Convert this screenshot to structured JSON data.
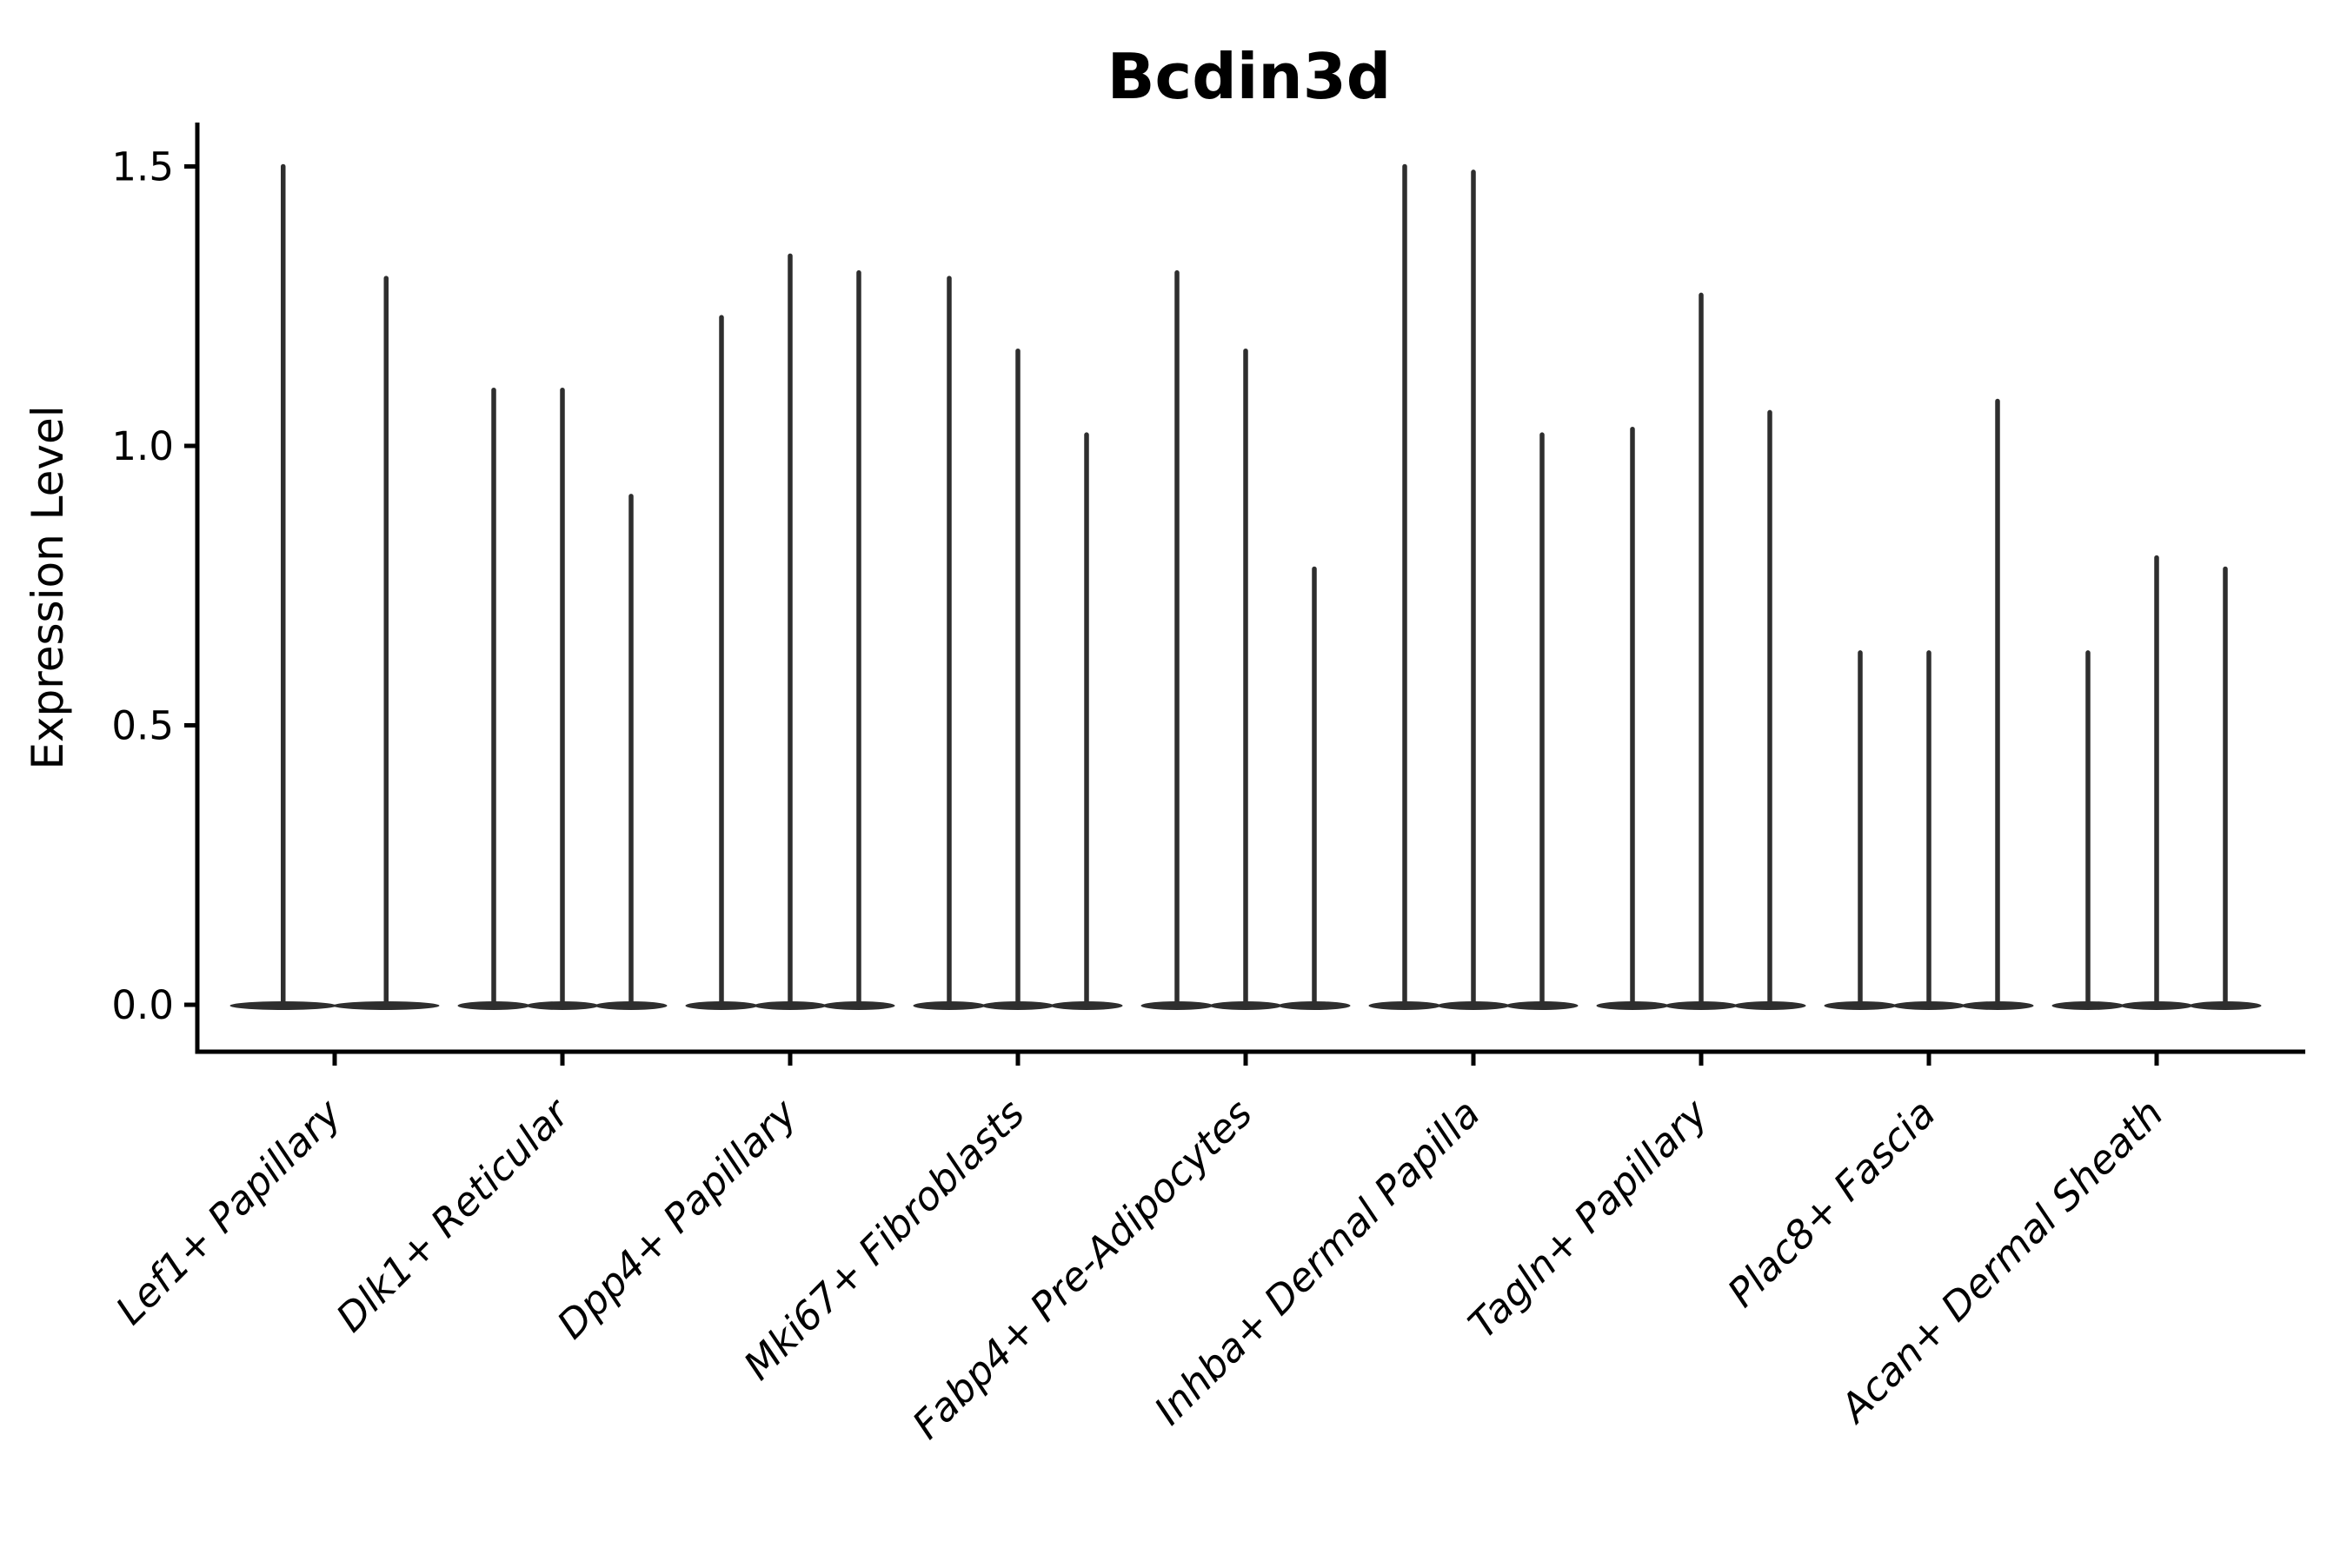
{
  "chart_data": {
    "type": "violin",
    "title": "Bcdin3d",
    "xlabel": "",
    "ylabel": "Expression Level",
    "ylim": [
      -0.08,
      1.58
    ],
    "grid": false,
    "legend": null,
    "ytick_labels": [
      "0.0",
      "0.5",
      "1.0",
      "1.5"
    ],
    "ytick_values": [
      0.0,
      0.5,
      1.0,
      1.5
    ],
    "categories": [
      "Lef1+ Papillary",
      "Dlk1+ Reticular",
      "Dpp4+ Papillary",
      "Mki67+ Fibroblasts",
      "Fabp4+ Pre-Adipocytes",
      "Inhba+ Dermal Papilla",
      "Tagln+ Papillary",
      "Plac8+ Fascia",
      "Acan+ Dermal Sheath"
    ],
    "groups": [
      {
        "label": "Lef1+ Papillary",
        "violin_max_values": [
          1.5,
          1.3
        ]
      },
      {
        "label": "Dlk1+ Reticular",
        "violin_max_values": [
          1.1,
          1.1,
          0.91
        ]
      },
      {
        "label": "Dpp4+ Papillary",
        "violin_max_values": [
          1.23,
          1.34,
          1.31
        ]
      },
      {
        "label": "Mki67+ Fibroblasts",
        "violin_max_values": [
          1.3,
          1.17,
          1.02
        ]
      },
      {
        "label": "Fabp4+ Pre-Adipocytes",
        "violin_max_values": [
          1.31,
          1.17,
          0.78
        ]
      },
      {
        "label": "Inhba+ Dermal Papilla",
        "violin_max_values": [
          1.5,
          1.49,
          1.02
        ]
      },
      {
        "label": "Tagln+ Papillary",
        "violin_max_values": [
          1.03,
          1.27,
          1.06
        ]
      },
      {
        "label": "Plac8+ Fascia",
        "violin_max_values": [
          0.63,
          0.63,
          1.08
        ]
      },
      {
        "label": "Acan+ Dermal Sheath",
        "violin_max_values": [
          0.63,
          0.8,
          0.78
        ]
      }
    ],
    "violin_baseline_value": 0.0
  },
  "style": {
    "violin_color": "#2e2e2e",
    "axis_color": "#000000",
    "text_color": "#000000",
    "background_color": "#ffffff"
  }
}
